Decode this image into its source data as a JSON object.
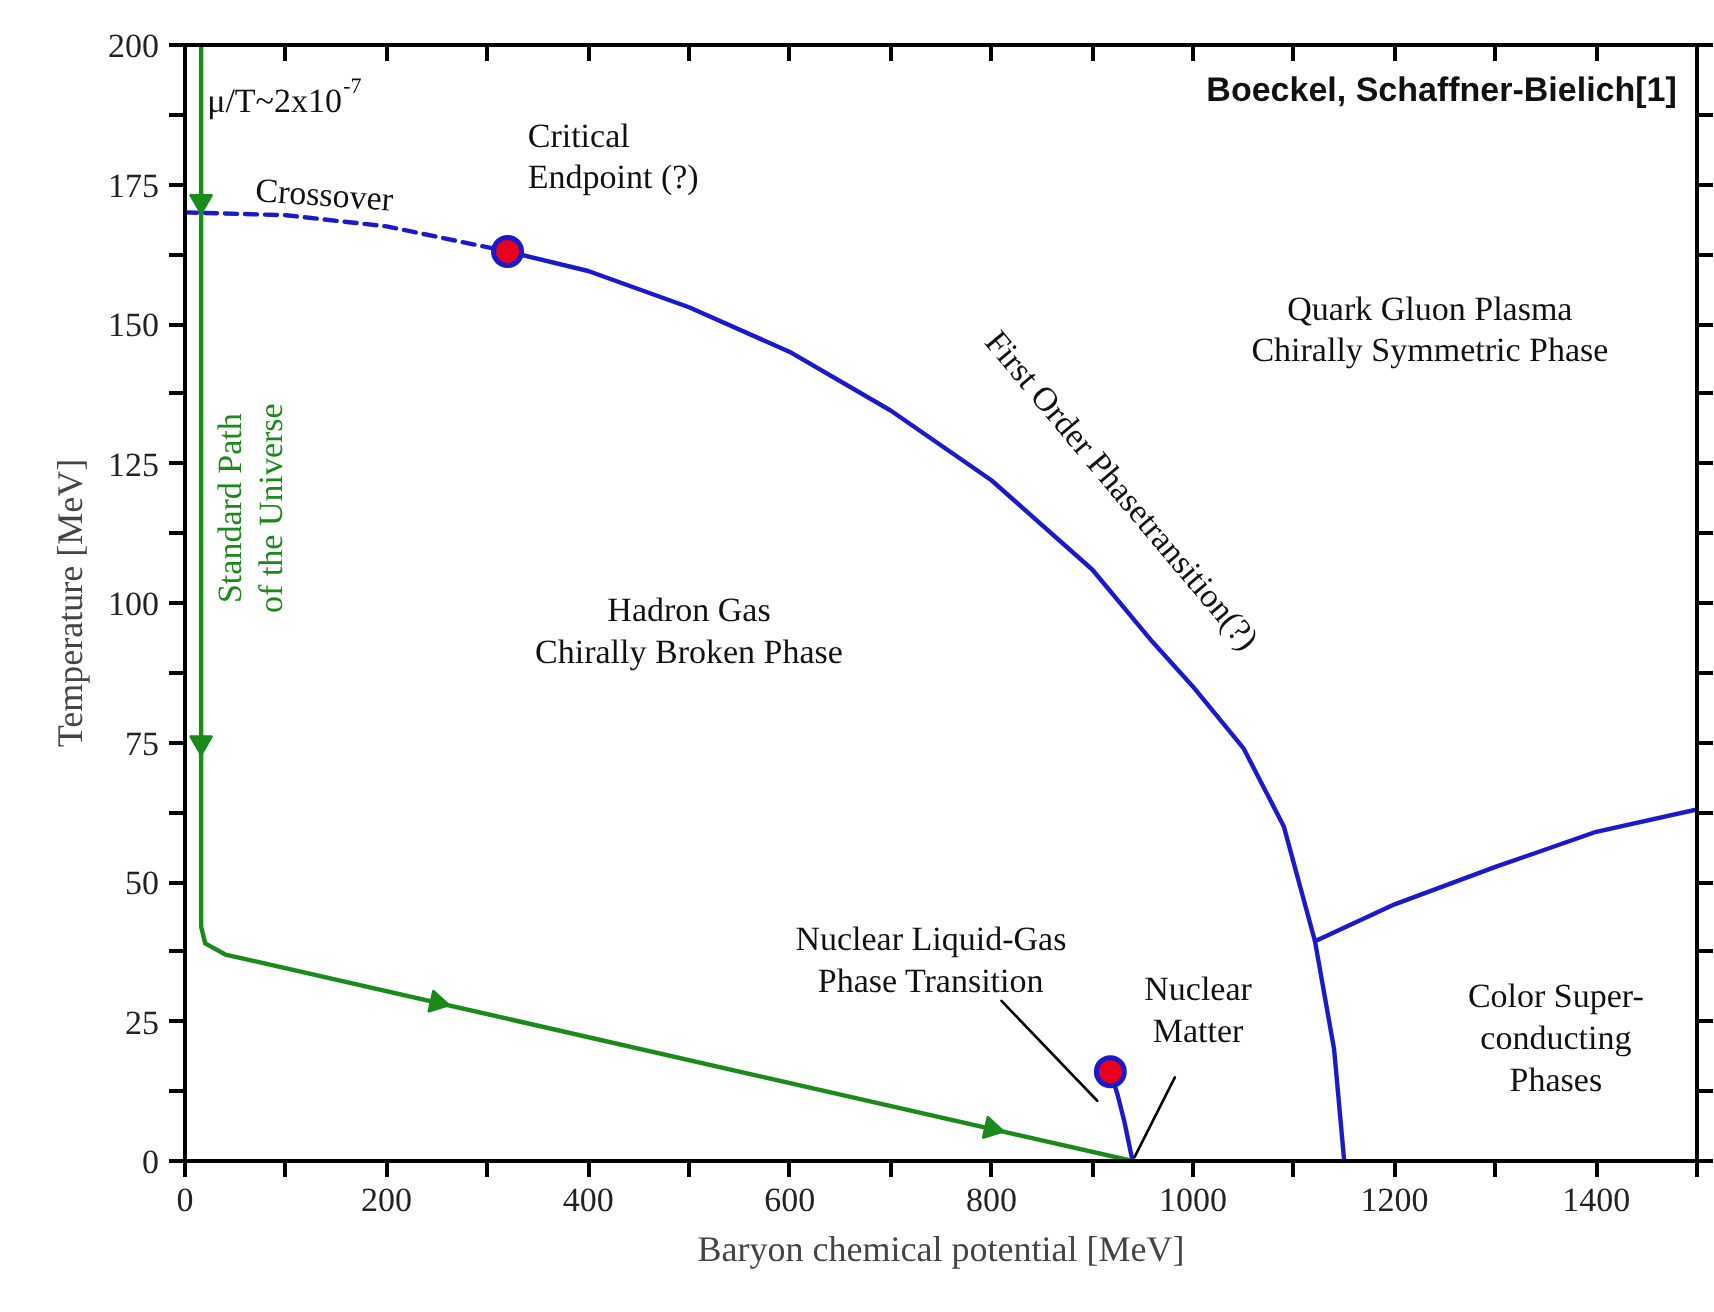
{
  "chart_data": {
    "type": "line",
    "xlabel": "Baryon chemical potential [MeV]",
    "ylabel": "Temperature [MeV]",
    "xlim": [
      0,
      1500
    ],
    "ylim": [
      0,
      200
    ],
    "xticks": [
      0,
      {
        "value": 100,
        "label": null
      },
      200,
      {
        "value": 300,
        "label": null
      },
      400,
      {
        "value": 500,
        "label": null
      },
      600,
      {
        "value": 700,
        "label": null
      },
      800,
      {
        "value": 900,
        "label": null
      },
      1000,
      {
        "value": 1100,
        "label": null
      },
      1200,
      {
        "value": 1300,
        "label": null
      },
      1400,
      {
        "value": 1500,
        "label": null
      }
    ],
    "yticks": [
      0,
      {
        "value": 12.5,
        "label": null
      },
      25,
      {
        "value": 37.5,
        "label": null
      },
      50,
      {
        "value": 62.5,
        "label": null
      },
      75,
      {
        "value": 87.5,
        "label": null
      },
      100,
      {
        "value": 112.5,
        "label": null
      },
      125,
      {
        "value": 137.5,
        "label": null
      },
      150,
      {
        "value": 162.5,
        "label": null
      },
      175,
      {
        "value": 187.5,
        "label": null
      },
      200
    ],
    "series": [
      {
        "color": "#1a1acc",
        "line_style": "dashed",
        "x": [
          0,
          100,
          200,
          320
        ],
        "values": [
          170,
          169.5,
          167.5,
          163
        ]
      },
      {
        "color": "#1a1acc",
        "line_style": "solid",
        "x": [
          320,
          400,
          500,
          600,
          700,
          800,
          900,
          960,
          1000,
          1050,
          1090,
          1121,
          1140,
          1150
        ],
        "values": [
          163,
          159.5,
          153,
          145,
          134.5,
          122,
          106,
          93,
          85,
          74,
          60,
          39.4,
          20,
          0
        ]
      },
      {
        "color": "#1a1acc",
        "line_style": "solid",
        "x": [
          1121,
          1200,
          1300,
          1400,
          1500
        ],
        "values": [
          39.4,
          46,
          52.7,
          59,
          63
        ]
      },
      {
        "color": "#1a1acc",
        "line_style": "solid",
        "x": [
          940,
          932,
          925,
          918
        ],
        "values": [
          0,
          7,
          12,
          16
        ]
      },
      {
        "color": "#1a8a1a",
        "line_style": "solid",
        "x": [
          16,
          16,
          20,
          40,
          940
        ],
        "values": [
          200,
          42,
          39,
          37,
          0
        ]
      },
      {
        "type": "scatter",
        "marker": "triangle",
        "color": "#1a8a1a",
        "x": [
          16,
          16,
          250,
          800
        ],
        "values": [
          172,
          75,
          28.4,
          5.8
        ]
      },
      {
        "type": "scatter",
        "marker": "circle",
        "color": "#e8001c",
        "x": [
          320,
          918
        ],
        "values": [
          163,
          16
        ]
      },
      {
        "color": "#000000",
        "line_style": "solid",
        "x": [
          810,
          905
        ],
        "values": [
          28.7,
          10.8
        ]
      },
      {
        "color": "#000000",
        "line_style": "solid",
        "x": [
          982,
          942
        ],
        "values": [
          15,
          0.7
        ]
      }
    ],
    "annotations": [
      "Boeckel, Schaffner-Bielich[1]",
      "μ/T~2x10$^{-7}$",
      "Crossover",
      "Critical\nEndpoint (?)",
      "Quark Gluon Plasma\nChirally Symmetric Phase",
      "First Order Phasetransition(?)",
      "Standard Path\nof the Universe",
      "Hadron Gas\nChirally Broken Phase",
      "Nuclear Liquid-Gas\nPhase Transition",
      "Nuclear\nMatter",
      "Color Super-\nconducting\nPhases"
    ]
  }
}
